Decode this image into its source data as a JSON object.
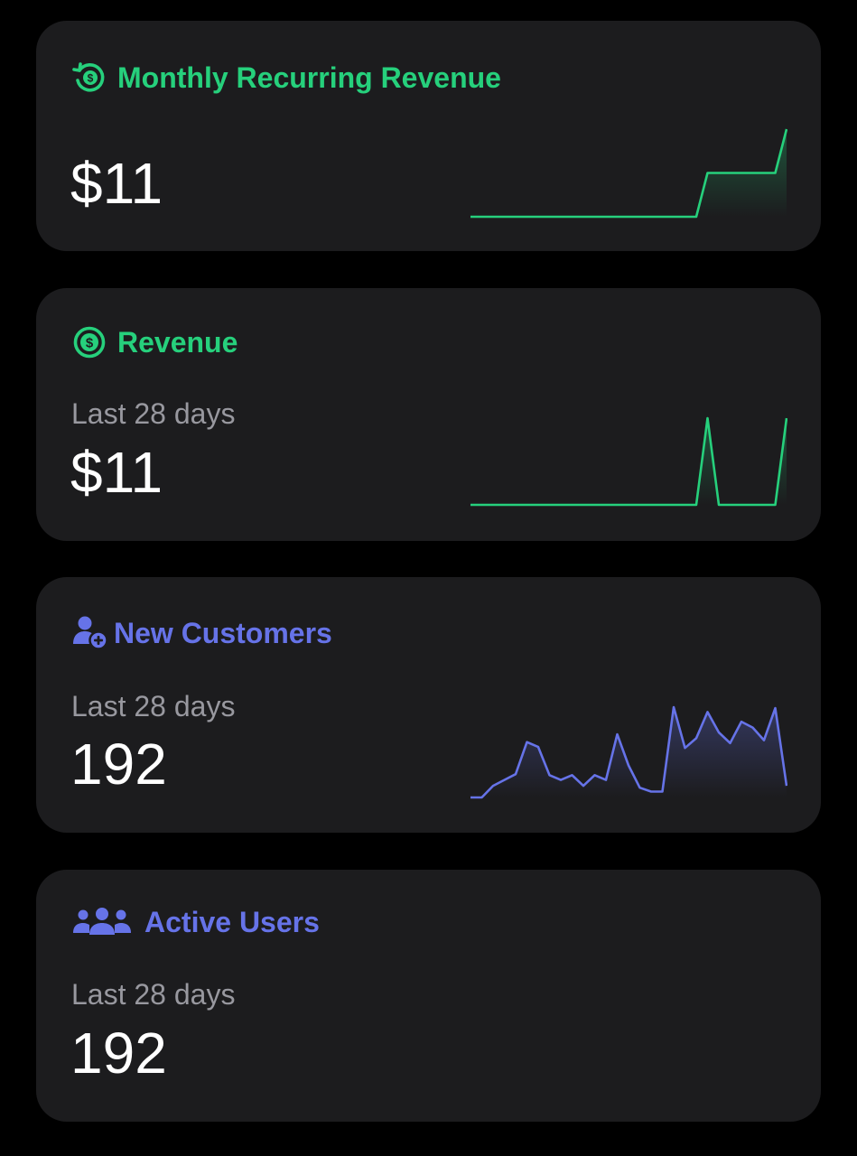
{
  "colors": {
    "background": "#000000",
    "card": "#1c1c1e",
    "green": "#26d07c",
    "blue": "#6673e8",
    "muted_text": "#98989f",
    "value_text": "#ffffff"
  },
  "cards": [
    {
      "id": "mrr",
      "icon": "recurring-dollar-icon",
      "title": "Monthly Recurring Revenue",
      "subtitle": "",
      "value": "$11",
      "accent": "#26d07c",
      "sparkline": [
        0,
        0,
        0,
        0,
        0,
        0,
        0,
        0,
        0,
        0,
        0,
        0,
        0,
        0,
        0,
        0,
        0,
        0,
        0,
        0,
        0,
        1,
        1,
        1,
        1,
        1,
        1,
        1,
        2
      ]
    },
    {
      "id": "revenue",
      "icon": "dollar-circle-icon",
      "title": "Revenue",
      "subtitle": "Last 28 days",
      "value": "$11",
      "accent": "#26d07c",
      "sparkline": [
        0,
        0,
        0,
        0,
        0,
        0,
        0,
        0,
        0,
        0,
        0,
        0,
        0,
        0,
        0,
        0,
        0,
        0,
        0,
        0,
        0,
        1,
        0,
        0,
        0,
        0,
        0,
        0,
        1
      ]
    },
    {
      "id": "new-customers",
      "icon": "user-plus-icon",
      "title": "New Customers",
      "subtitle": "Last 28 days",
      "value": "192",
      "accent": "#6673e8",
      "sparkline": [
        0,
        0,
        1.2,
        1.8,
        2.4,
        5.7,
        5.2,
        2.3,
        1.8,
        2.3,
        1.2,
        2.3,
        1.8,
        6.5,
        3.3,
        1,
        0.6,
        0.6,
        9.3,
        5.1,
        6.1,
        8.8,
        6.7,
        5.6,
        7.8,
        7.2,
        5.9,
        9.2,
        1.2
      ]
    },
    {
      "id": "active-users",
      "icon": "users-group-icon",
      "title": "Active Users",
      "subtitle": "Last 28 days",
      "value": "192",
      "accent": "#6673e8",
      "sparkline": []
    }
  ]
}
